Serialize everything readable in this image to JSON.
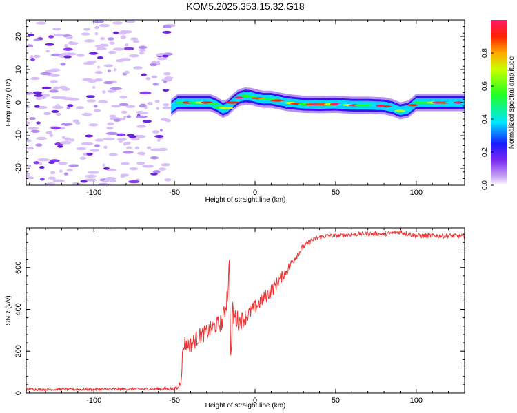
{
  "chart_data": [
    {
      "type": "heatmap",
      "title": "KOM5.2025.353.15.32.G18",
      "xlabel": "Height of straight line (km)",
      "ylabel": "Frequency (Hz)",
      "xlim": [
        -142,
        130
      ],
      "ylim": [
        -25,
        25
      ],
      "xticks": [
        -100,
        -50,
        0,
        50,
        100
      ],
      "xtick_labels": [
        "-100",
        "-50",
        "0",
        "50",
        "100"
      ],
      "yticks": [
        -20,
        -10,
        0,
        10,
        20
      ],
      "ytick_labels": [
        "-20",
        "-10",
        "0",
        "10",
        "20"
      ],
      "noise_region_x": [
        -142,
        -52
      ],
      "signal_track": {
        "x": [
          -52,
          -48,
          -42,
          -35,
          -28,
          -24,
          -20,
          -17,
          -14,
          -10,
          -6,
          -2,
          0,
          5,
          10,
          15,
          20,
          30,
          40,
          50,
          60,
          70,
          80,
          85,
          90,
          95,
          100,
          110,
          120,
          130
        ],
        "freq": [
          -1.5,
          0.0,
          0.0,
          0.0,
          0.0,
          -0.8,
          -2.0,
          -1.5,
          0.0,
          1.5,
          2.0,
          1.8,
          1.5,
          1.0,
          1.0,
          0.5,
          0.0,
          -0.5,
          -0.6,
          -0.5,
          -0.8,
          -0.8,
          -1.0,
          -1.5,
          -2.5,
          -2.0,
          0.0,
          0.0,
          0.0,
          0.0
        ]
      },
      "colorbar": {
        "label": "Normalized spectral amplitude",
        "range": [
          0,
          1
        ],
        "ticks": [
          0.0,
          0.2,
          0.4,
          0.6,
          0.8
        ],
        "tick_labels": [
          "0.0",
          "0.2",
          "0.4",
          "0.6",
          "0.8"
        ]
      }
    },
    {
      "type": "line",
      "title": "",
      "xlabel": "Height of straight line (km)",
      "ylabel": "SNR (v/v)",
      "xlim": [
        -142,
        130
      ],
      "ylim": [
        0,
        790
      ],
      "xticks": [
        -100,
        -50,
        0,
        50,
        100
      ],
      "xtick_labels": [
        "-100",
        "-50",
        "0",
        "50",
        "100"
      ],
      "yticks": [
        0,
        200,
        400,
        600
      ],
      "ytick_labels": [
        "0",
        "200",
        "400",
        "600"
      ],
      "series": [
        {
          "name": "SNR",
          "color": "#ee3333",
          "x": [
            -142,
            -100,
            -60,
            -48,
            -46,
            -45,
            -44,
            -40,
            -35,
            -30,
            -25,
            -20,
            -17,
            -16,
            -15,
            -14,
            -10,
            -5,
            0,
            5,
            10,
            15,
            20,
            25,
            30,
            35,
            40,
            45,
            50,
            60,
            70,
            80,
            90,
            100,
            110,
            120,
            130
          ],
          "values": [
            18,
            18,
            20,
            22,
            60,
            180,
            240,
            230,
            270,
            290,
            320,
            340,
            480,
            630,
            140,
            380,
            340,
            370,
            410,
            450,
            490,
            540,
            590,
            650,
            700,
            730,
            745,
            752,
            752,
            758,
            762,
            760,
            770,
            752,
            752,
            752,
            748
          ],
          "noise_amplitude": [
            6,
            6,
            6,
            8,
            20,
            40,
            40,
            40,
            40,
            40,
            40,
            45,
            60,
            10,
            10,
            60,
            45,
            40,
            35,
            35,
            35,
            30,
            25,
            20,
            15,
            12,
            10,
            10,
            10,
            10,
            10,
            10,
            12,
            12,
            12,
            12,
            12
          ]
        }
      ]
    }
  ]
}
